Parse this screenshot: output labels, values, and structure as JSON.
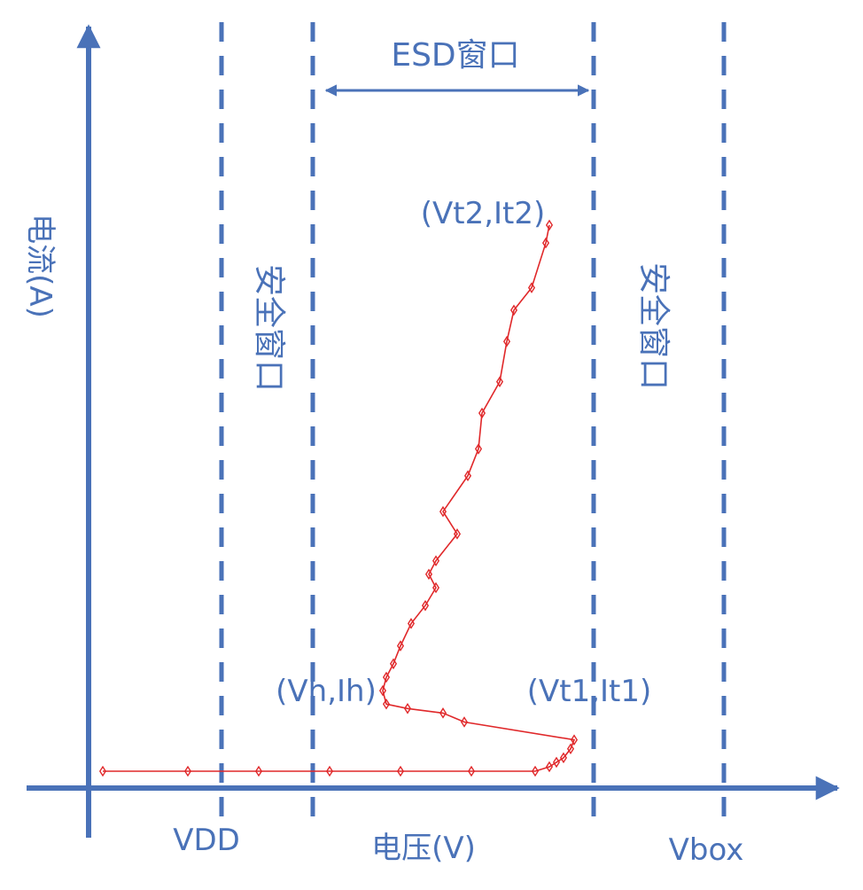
{
  "colors": {
    "axis": "#4a72b8",
    "guides": "#4a72b8",
    "curve": "#e0282a",
    "text": "#4a72b8"
  },
  "axes": {
    "x_title": "电压(V)",
    "y_title": "电流(A)"
  },
  "guide_lines": [
    {
      "label": "VDD",
      "labeled": true
    },
    {
      "label": "",
      "labeled": false
    },
    {
      "label": "",
      "labeled": false
    },
    {
      "label": "Vbox",
      "labeled": true
    }
  ],
  "regions": {
    "left_safe": "安全窗口",
    "right_safe": "安全窗口",
    "esd_window": "ESD窗口"
  },
  "point_labels": {
    "trigger": "(Vt1,It1)",
    "holding": "(Vh,Ih)",
    "failure": "(Vt2,It2)"
  },
  "chart_data": {
    "type": "line",
    "title": "",
    "xlabel": "电压(V)",
    "ylabel": "电流(A)",
    "series": [
      {
        "points": [
          [
            0.2,
            0.0
          ],
          [
            1.4,
            0.0
          ],
          [
            2.4,
            0.0
          ],
          [
            3.4,
            0.0
          ],
          [
            4.4,
            0.0
          ],
          [
            5.4,
            0.0
          ],
          [
            6.3,
            0.0
          ],
          [
            6.5,
            0.01
          ],
          [
            6.6,
            0.02
          ],
          [
            6.7,
            0.03
          ],
          [
            6.8,
            0.05
          ],
          [
            6.85,
            0.07
          ],
          [
            5.3,
            0.11
          ],
          [
            5.0,
            0.13
          ],
          [
            4.5,
            0.14
          ],
          [
            4.2,
            0.15
          ],
          [
            4.15,
            0.18
          ],
          [
            4.2,
            0.21
          ],
          [
            4.3,
            0.24
          ],
          [
            4.4,
            0.28
          ],
          [
            4.55,
            0.33
          ],
          [
            4.75,
            0.37
          ],
          [
            4.9,
            0.41
          ],
          [
            4.8,
            0.44
          ],
          [
            4.9,
            0.47
          ],
          [
            5.2,
            0.53
          ],
          [
            5.0,
            0.58
          ],
          [
            5.35,
            0.66
          ],
          [
            5.5,
            0.72
          ],
          [
            5.55,
            0.8
          ],
          [
            5.8,
            0.87
          ],
          [
            5.9,
            0.96
          ],
          [
            6.0,
            1.03
          ],
          [
            6.25,
            1.08
          ],
          [
            6.45,
            1.18
          ],
          [
            6.5,
            1.22
          ]
        ]
      }
    ]
  }
}
